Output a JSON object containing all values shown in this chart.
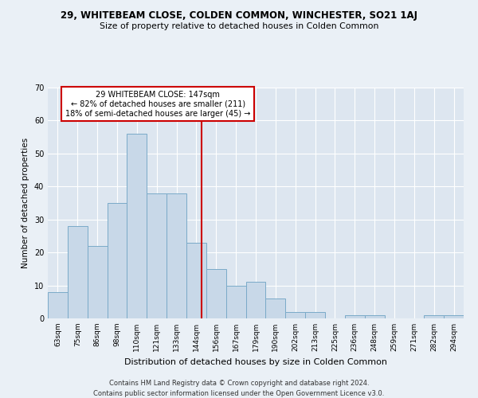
{
  "title": "29, WHITEBEAM CLOSE, COLDEN COMMON, WINCHESTER, SO21 1AJ",
  "subtitle": "Size of property relative to detached houses in Colden Common",
  "xlabel": "Distribution of detached houses by size in Colden Common",
  "ylabel": "Number of detached properties",
  "categories": [
    "63sqm",
    "75sqm",
    "86sqm",
    "98sqm",
    "110sqm",
    "121sqm",
    "133sqm",
    "144sqm",
    "156sqm",
    "167sqm",
    "179sqm",
    "190sqm",
    "202sqm",
    "213sqm",
    "225sqm",
    "236sqm",
    "248sqm",
    "259sqm",
    "271sqm",
    "282sqm",
    "294sqm"
  ],
  "values": [
    8,
    28,
    22,
    35,
    56,
    38,
    38,
    23,
    15,
    10,
    11,
    6,
    2,
    2,
    0,
    1,
    1,
    0,
    0,
    1,
    1
  ],
  "bar_color": "#c8d8e8",
  "bar_edge_color": "#7aaac8",
  "background_color": "#dde6f0",
  "grid_color": "#ffffff",
  "property_label": "29 WHITEBEAM CLOSE: 147sqm",
  "line1": "← 82% of detached houses are smaller (211)",
  "line2": "18% of semi-detached houses are larger (45) →",
  "annotation_box_color": "#cc0000",
  "vline_color": "#cc0000",
  "ylim": [
    0,
    70
  ],
  "yticks": [
    0,
    10,
    20,
    30,
    40,
    50,
    60,
    70
  ],
  "footer1": "Contains HM Land Registry data © Crown copyright and database right 2024.",
  "footer2": "Contains public sector information licensed under the Open Government Licence v3.0."
}
